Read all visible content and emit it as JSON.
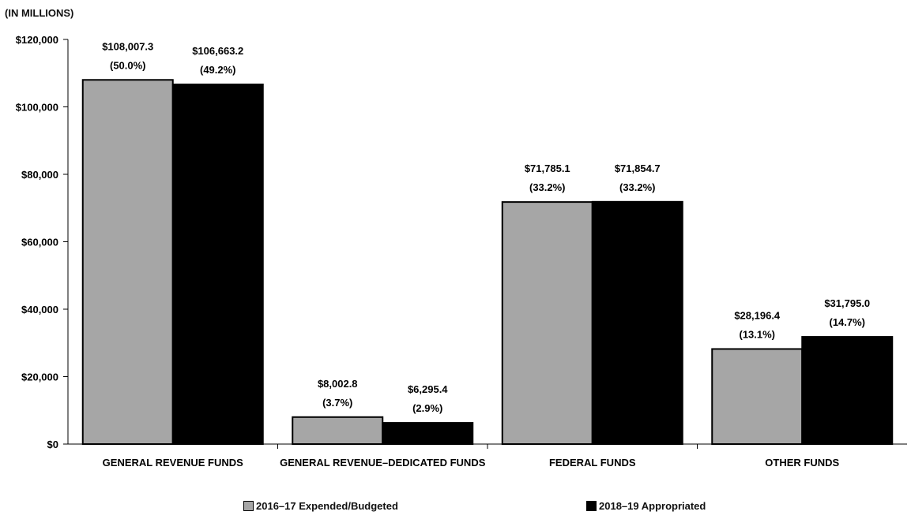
{
  "chart_data": {
    "type": "bar",
    "unit_label": "(IN MILLIONS)",
    "categories": [
      "GENERAL REVENUE FUNDS",
      "GENERAL REVENUE–DEDICATED FUNDS",
      "FEDERAL FUNDS",
      "OTHER FUNDS"
    ],
    "ylim": [
      0,
      120000
    ],
    "yticks": [
      0,
      20000,
      40000,
      60000,
      80000,
      100000,
      120000
    ],
    "ytick_labels": [
      "$0",
      "$20,000",
      "$40,000",
      "$60,000",
      "$80,000",
      "$100,000",
      "$120,000"
    ],
    "grid": false,
    "legend_position": "bottom",
    "series": [
      {
        "name": "2016–17 Expended/Budgeted",
        "color": "#a6a6a6",
        "values": [
          108007.3,
          8002.8,
          71785.1,
          28196.4
        ],
        "labels": [
          "$108,007.3",
          "$8,002.8",
          "$71,785.1",
          "$28,196.4"
        ],
        "percent_labels": [
          "(50.0%)",
          "(3.7%)",
          "(33.2%)",
          "(13.1%)"
        ]
      },
      {
        "name": "2018–19 Appropriated",
        "color": "#000000",
        "values": [
          106663.2,
          6295.4,
          71854.7,
          31795.0
        ],
        "labels": [
          "$106,663.2",
          "$6,295.4",
          "$71,854.7",
          "$31,795.0"
        ],
        "percent_labels": [
          "(49.2%)",
          "(2.9%)",
          "(33.2%)",
          "(14.7%)"
        ]
      }
    ]
  }
}
